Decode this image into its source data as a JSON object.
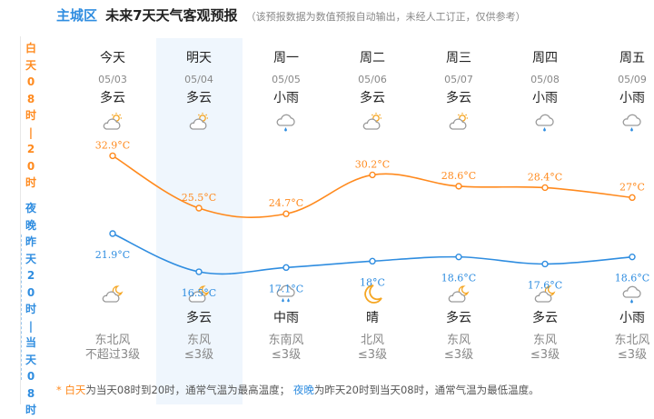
{
  "header": {
    "city": "主城区",
    "title": "未来7天天气客观预报",
    "note": "（该预报数据为数值预报自动输出，未经人工订正，仅供参考）"
  },
  "sidebar": {
    "day_label": "白天08时|20时",
    "night_label": "夜晚昨天20时|当天08时"
  },
  "days": [
    {
      "name": "今天",
      "date": "05/03",
      "day_weather": "多云",
      "day_icon": "partly-cloudy-sun-icon",
      "night_icon": "partly-cloudy-moon-icon",
      "night_weather": "",
      "wind_dir": "东北风",
      "wind_level": "不超过3级"
    },
    {
      "name": "明天",
      "date": "05/04",
      "day_weather": "多云",
      "day_icon": "partly-cloudy-sun-icon",
      "night_icon": "partly-cloudy-moon-icon",
      "night_weather": "多云",
      "wind_dir": "东风",
      "wind_level": "≤3级"
    },
    {
      "name": "周一",
      "date": "05/05",
      "day_weather": "小雨",
      "day_icon": "light-rain-icon",
      "night_icon": "moderate-rain-icon",
      "night_weather": "中雨",
      "wind_dir": "东南风",
      "wind_level": "≤3级"
    },
    {
      "name": "周二",
      "date": "05/06",
      "day_weather": "多云",
      "day_icon": "partly-cloudy-sun-icon",
      "night_icon": "crescent-moon-icon",
      "night_weather": "晴",
      "wind_dir": "北风",
      "wind_level": "≤3级"
    },
    {
      "name": "周三",
      "date": "05/07",
      "day_weather": "多云",
      "day_icon": "partly-cloudy-sun-icon",
      "night_icon": "partly-cloudy-moon-icon",
      "night_weather": "多云",
      "wind_dir": "东风",
      "wind_level": "≤3级"
    },
    {
      "name": "周四",
      "date": "05/08",
      "day_weather": "小雨",
      "day_icon": "light-rain-icon",
      "night_icon": "partly-cloudy-moon-icon",
      "night_weather": "多云",
      "wind_dir": "东风",
      "wind_level": "≤3级"
    },
    {
      "name": "周五",
      "date": "05/09",
      "day_weather": "小雨",
      "day_icon": "light-rain-icon",
      "night_icon": "light-rain-icon",
      "night_weather": "小雨",
      "wind_dir": "东北风",
      "wind_level": "≤3级"
    }
  ],
  "chart_data": {
    "type": "line",
    "categories": [
      "05/03",
      "05/04",
      "05/05",
      "05/06",
      "05/07",
      "05/08",
      "05/09"
    ],
    "series": [
      {
        "values": [
          32.9,
          25.5,
          24.7,
          30.2,
          28.6,
          28.4,
          27
        ],
        "labels": [
          "32.9°C",
          "25.5°C",
          "24.7°C",
          "30.2°C",
          "28.6°C",
          "28.4°C",
          "27°C"
        ],
        "color": "#ff8a1e"
      },
      {
        "values": [
          21.9,
          16.5,
          17.1,
          18,
          18.6,
          17.6,
          18.6
        ],
        "labels": [
          "21.9°C",
          "16.5°C",
          "17.1°C",
          "18°C",
          "18.6°C",
          "17.6°C",
          "18.6°C"
        ],
        "color": "#2f8de0"
      }
    ]
  },
  "footnote": {
    "star": "*",
    "day_term": "白天",
    "day_text": "为当天08时到20时，通常气温为最高温度；",
    "night_term": "夜晚",
    "night_text": "为昨天20时到当天08时，通常气温为最低温度。"
  },
  "colors": {
    "day": "#ff8a1e",
    "night": "#2f8de0",
    "highlight": "#eff6fd"
  }
}
